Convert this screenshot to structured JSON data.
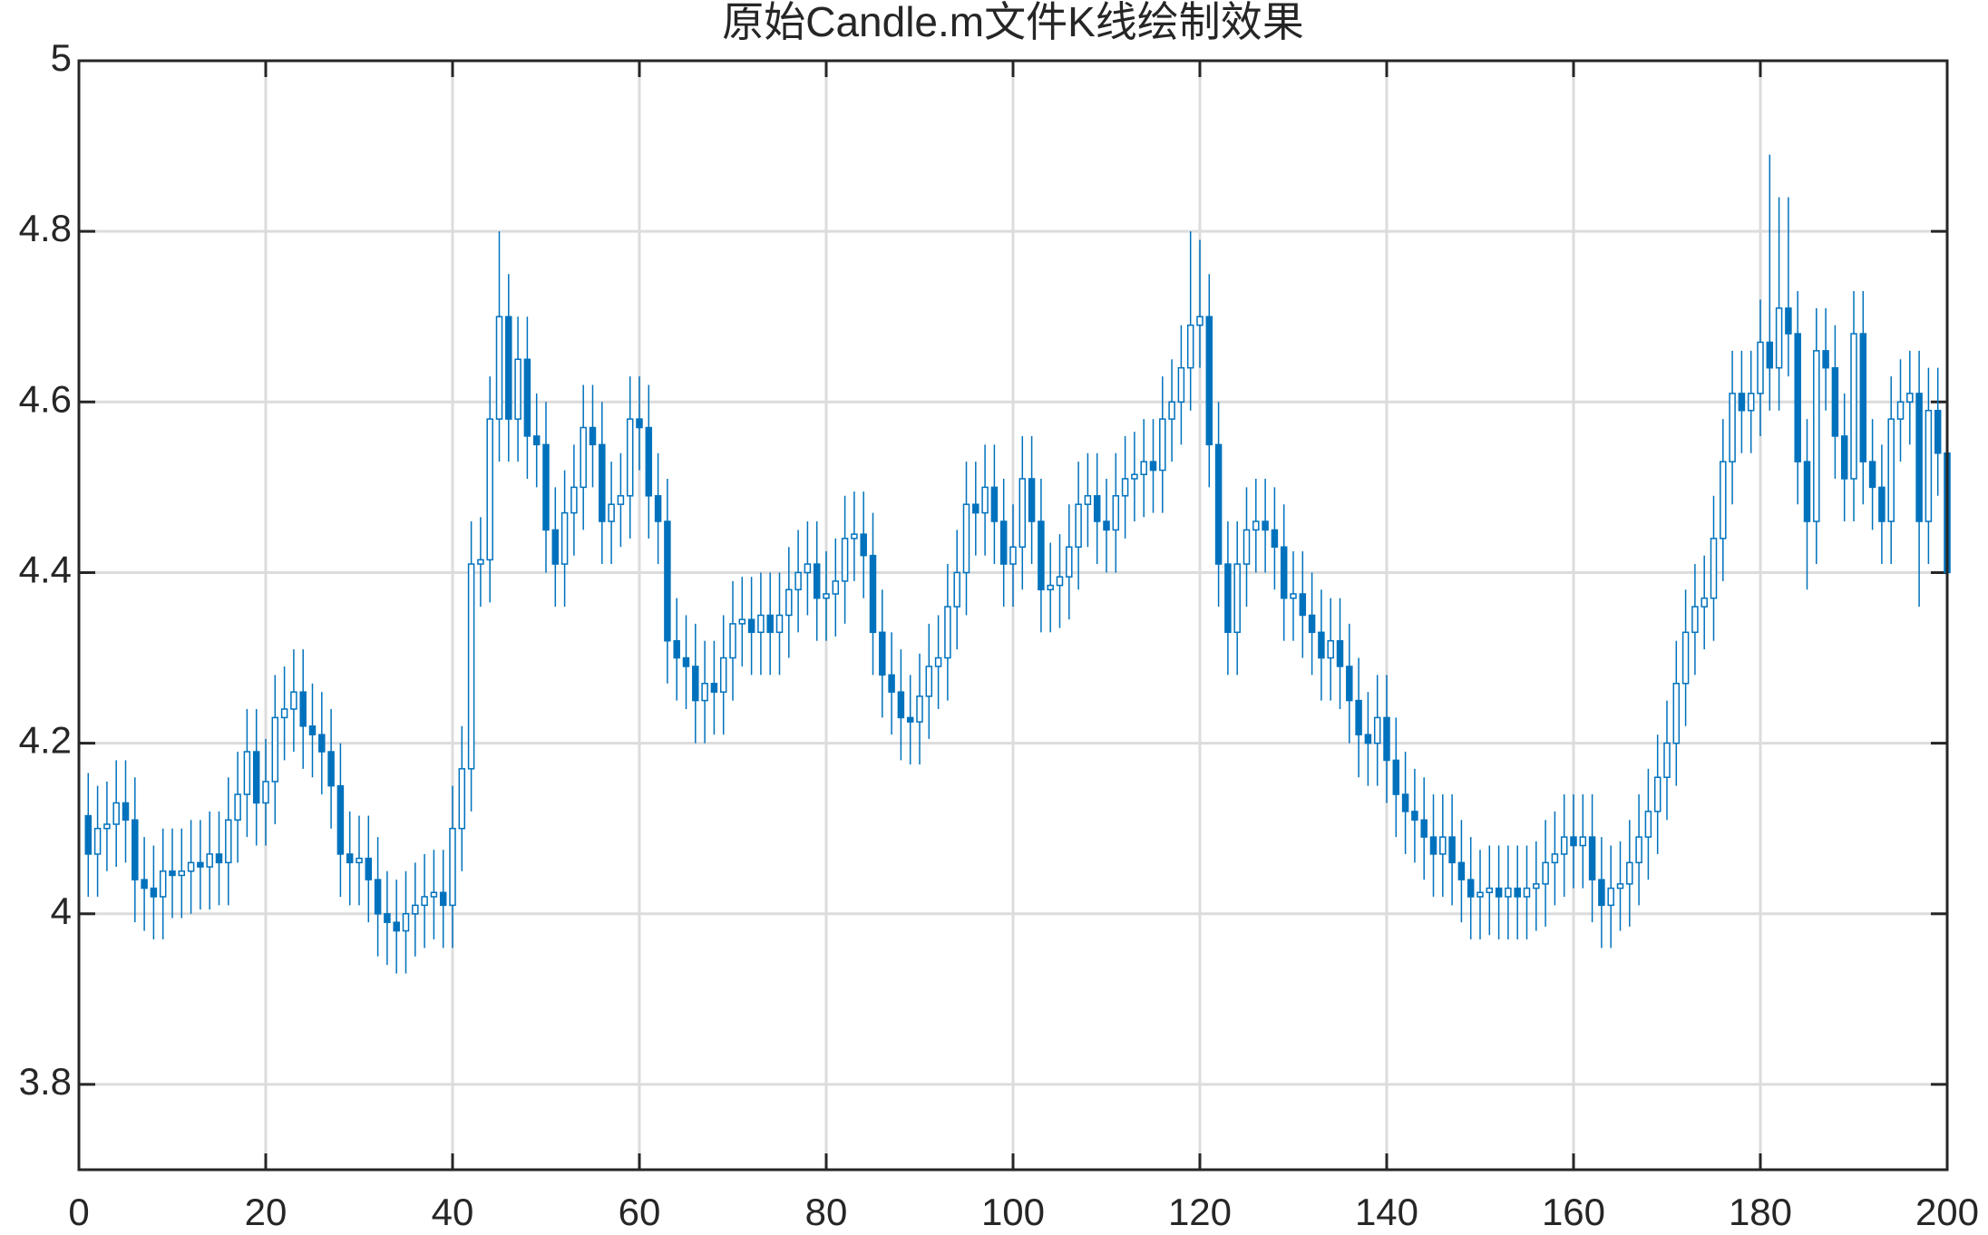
{
  "chart_data": {
    "type": "candlestick",
    "title": "原始Candle.m文件K线绘制效果",
    "color": "#0072bd",
    "grid": true,
    "xlim": [
      0,
      200
    ],
    "ylim": [
      3.7,
      5
    ],
    "xticks": [
      0,
      20,
      40,
      60,
      80,
      100,
      120,
      140,
      160,
      180,
      200
    ],
    "yticks": [
      3.8,
      4,
      4.2,
      4.4,
      4.6,
      4.8,
      5
    ],
    "x": [
      1,
      2,
      3,
      4,
      5,
      6,
      7,
      8,
      9,
      10,
      11,
      12,
      13,
      14,
      15,
      16,
      17,
      18,
      19,
      20,
      21,
      22,
      23,
      24,
      25,
      26,
      27,
      28,
      29,
      30,
      31,
      32,
      33,
      34,
      35,
      36,
      37,
      38,
      39,
      40,
      41,
      42,
      43,
      44,
      45,
      46,
      47,
      48,
      49,
      50,
      51,
      52,
      53,
      54,
      55,
      56,
      57,
      58,
      59,
      60,
      61,
      62,
      63,
      64,
      65,
      66,
      67,
      68,
      69,
      70,
      71,
      72,
      73,
      74,
      75,
      76,
      77,
      78,
      79,
      80,
      81,
      82,
      83,
      84,
      85,
      86,
      87,
      88,
      89,
      90,
      91,
      92,
      93,
      94,
      95,
      96,
      97,
      98,
      99,
      100,
      101,
      102,
      103,
      104,
      105,
      106,
      107,
      108,
      109,
      110,
      111,
      112,
      113,
      114,
      115,
      116,
      117,
      118,
      119,
      120,
      121,
      122,
      123,
      124,
      125,
      126,
      127,
      128,
      129,
      130,
      131,
      132,
      133,
      134,
      135,
      136,
      137,
      138,
      139,
      140,
      141,
      142,
      143,
      144,
      145,
      146,
      147,
      148,
      149,
      150,
      151,
      152,
      153,
      154,
      155,
      156,
      157,
      158,
      159,
      160,
      161,
      162,
      163,
      164,
      165,
      166,
      167,
      168,
      169,
      170,
      171,
      172,
      173,
      174,
      175,
      176,
      177,
      178,
      179,
      180,
      181,
      182,
      183,
      184,
      185,
      186,
      187,
      188,
      189,
      190,
      191,
      192,
      193,
      194,
      195,
      196,
      197,
      198,
      199,
      200
    ],
    "open": [
      4.115,
      4.07,
      4.1,
      4.105,
      4.13,
      4.11,
      4.04,
      4.03,
      4.02,
      4.05,
      4.045,
      4.05,
      4.06,
      4.055,
      4.07,
      4.06,
      4.11,
      4.14,
      4.19,
      4.13,
      4.155,
      4.23,
      4.24,
      4.26,
      4.22,
      4.21,
      4.19,
      4.15,
      4.07,
      4.06,
      4.065,
      4.04,
      4.0,
      3.99,
      3.98,
      4.0,
      4.01,
      4.02,
      4.025,
      4.01,
      4.1,
      4.17,
      4.41,
      4.415,
      4.58,
      4.7,
      4.58,
      4.65,
      4.56,
      4.55,
      4.45,
      4.41,
      4.47,
      4.5,
      4.57,
      4.55,
      4.46,
      4.48,
      4.49,
      4.58,
      4.57,
      4.49,
      4.46,
      4.32,
      4.3,
      4.29,
      4.25,
      4.27,
      4.26,
      4.3,
      4.34,
      4.345,
      4.33,
      4.35,
      4.33,
      4.35,
      4.38,
      4.4,
      4.41,
      4.37,
      4.375,
      4.39,
      4.44,
      4.445,
      4.42,
      4.33,
      4.28,
      4.26,
      4.23,
      4.225,
      4.255,
      4.29,
      4.3,
      4.36,
      4.4,
      4.48,
      4.47,
      4.5,
      4.46,
      4.41,
      4.43,
      4.51,
      4.46,
      4.38,
      4.385,
      4.395,
      4.43,
      4.48,
      4.49,
      4.46,
      4.45,
      4.49,
      4.51,
      4.515,
      4.53,
      4.52,
      4.58,
      4.6,
      4.64,
      4.69,
      4.7,
      4.55,
      4.41,
      4.33,
      4.41,
      4.45,
      4.46,
      4.45,
      4.43,
      4.37,
      4.375,
      4.35,
      4.33,
      4.3,
      4.32,
      4.29,
      4.25,
      4.21,
      4.2,
      4.23,
      4.18,
      4.14,
      4.12,
      4.11,
      4.09,
      4.07,
      4.09,
      4.06,
      4.04,
      4.02,
      4.025,
      4.03,
      4.02,
      4.03,
      4.02,
      4.03,
      4.035,
      4.06,
      4.07,
      4.09,
      4.08,
      4.09,
      4.04,
      4.01,
      4.03,
      4.035,
      4.06,
      4.09,
      4.12,
      4.16,
      4.2,
      4.27,
      4.33,
      4.36,
      4.37,
      4.44,
      4.53,
      4.61,
      4.59,
      4.61,
      4.67,
      4.64,
      4.71,
      4.68,
      4.53,
      4.46,
      4.66,
      4.64,
      4.56,
      4.51,
      4.68,
      4.53,
      4.5,
      4.46,
      4.58,
      4.6,
      4.61,
      4.46,
      4.59,
      4.54
    ],
    "high": [
      4.165,
      4.15,
      4.155,
      4.18,
      4.18,
      4.16,
      4.09,
      4.08,
      4.1,
      4.1,
      4.1,
      4.11,
      4.11,
      4.12,
      4.12,
      4.16,
      4.19,
      4.24,
      4.24,
      4.205,
      4.28,
      4.29,
      4.31,
      4.31,
      4.27,
      4.26,
      4.24,
      4.2,
      4.12,
      4.115,
      4.115,
      4.09,
      4.05,
      4.04,
      4.05,
      4.06,
      4.07,
      4.075,
      4.075,
      4.15,
      4.22,
      4.46,
      4.465,
      4.63,
      4.8,
      4.75,
      4.7,
      4.7,
      4.61,
      4.6,
      4.5,
      4.52,
      4.55,
      4.62,
      4.62,
      4.6,
      4.53,
      4.54,
      4.63,
      4.63,
      4.62,
      4.54,
      4.51,
      4.37,
      4.35,
      4.34,
      4.32,
      4.32,
      4.35,
      4.39,
      4.395,
      4.395,
      4.4,
      4.4,
      4.4,
      4.43,
      4.45,
      4.46,
      4.46,
      4.425,
      4.44,
      4.49,
      4.495,
      4.495,
      4.47,
      4.38,
      4.33,
      4.31,
      4.28,
      4.305,
      4.34,
      4.35,
      4.41,
      4.45,
      4.53,
      4.53,
      4.55,
      4.55,
      4.51,
      4.48,
      4.56,
      4.56,
      4.51,
      4.435,
      4.445,
      4.48,
      4.53,
      4.54,
      4.54,
      4.51,
      4.54,
      4.56,
      4.565,
      4.58,
      4.58,
      4.63,
      4.65,
      4.69,
      4.8,
      4.79,
      4.75,
      4.6,
      4.46,
      4.46,
      4.5,
      4.51,
      4.51,
      4.5,
      4.48,
      4.425,
      4.425,
      4.4,
      4.38,
      4.37,
      4.37,
      4.34,
      4.3,
      4.26,
      4.28,
      4.28,
      4.23,
      4.19,
      4.17,
      4.16,
      4.14,
      4.14,
      4.14,
      4.11,
      4.09,
      4.075,
      4.08,
      4.08,
      4.08,
      4.08,
      4.08,
      4.085,
      4.11,
      4.12,
      4.14,
      4.14,
      4.14,
      4.14,
      4.09,
      4.08,
      4.085,
      4.11,
      4.14,
      4.17,
      4.21,
      4.25,
      4.32,
      4.38,
      4.41,
      4.42,
      4.49,
      4.58,
      4.66,
      4.66,
      4.66,
      4.72,
      4.89,
      4.84,
      4.84,
      4.73,
      4.58,
      4.71,
      4.71,
      4.69,
      4.61,
      4.73,
      4.73,
      4.58,
      4.55,
      4.63,
      4.65,
      4.66,
      4.66,
      4.64,
      4.64,
      4.59
    ],
    "low": [
      4.02,
      4.02,
      4.05,
      4.055,
      4.06,
      3.99,
      3.98,
      3.97,
      3.97,
      3.995,
      3.995,
      4.0,
      4.005,
      4.005,
      4.01,
      4.01,
      4.06,
      4.09,
      4.08,
      4.08,
      4.105,
      4.18,
      4.19,
      4.17,
      4.16,
      4.14,
      4.1,
      4.02,
      4.01,
      4.01,
      3.99,
      3.95,
      3.94,
      3.93,
      3.93,
      3.95,
      3.96,
      3.97,
      3.96,
      3.96,
      4.05,
      4.12,
      4.36,
      4.365,
      4.53,
      4.53,
      4.53,
      4.51,
      4.5,
      4.4,
      4.36,
      4.36,
      4.42,
      4.45,
      4.5,
      4.41,
      4.41,
      4.43,
      4.44,
      4.52,
      4.44,
      4.41,
      4.27,
      4.25,
      4.24,
      4.2,
      4.2,
      4.21,
      4.21,
      4.25,
      4.29,
      4.28,
      4.28,
      4.28,
      4.28,
      4.3,
      4.33,
      4.35,
      4.32,
      4.32,
      4.325,
      4.34,
      4.39,
      4.37,
      4.28,
      4.23,
      4.21,
      4.18,
      4.175,
      4.175,
      4.205,
      4.24,
      4.25,
      4.31,
      4.35,
      4.42,
      4.42,
      4.41,
      4.36,
      4.36,
      4.38,
      4.41,
      4.33,
      4.33,
      4.335,
      4.345,
      4.38,
      4.43,
      4.41,
      4.4,
      4.4,
      4.44,
      4.46,
      4.465,
      4.47,
      4.47,
      4.53,
      4.55,
      4.59,
      4.64,
      4.5,
      4.36,
      4.28,
      4.28,
      4.36,
      4.4,
      4.4,
      4.38,
      4.32,
      4.32,
      4.3,
      4.28,
      4.25,
      4.25,
      4.24,
      4.2,
      4.16,
      4.15,
      4.15,
      4.13,
      4.09,
      4.07,
      4.06,
      4.04,
      4.02,
      4.02,
      4.01,
      3.99,
      3.97,
      3.97,
      3.975,
      3.97,
      3.97,
      3.97,
      3.97,
      3.98,
      3.985,
      4.01,
      4.02,
      4.03,
      4.03,
      3.99,
      3.96,
      3.96,
      3.98,
      3.985,
      4.01,
      4.04,
      4.07,
      4.11,
      4.15,
      4.22,
      4.28,
      4.31,
      4.32,
      4.39,
      4.48,
      4.54,
      4.54,
      4.56,
      4.59,
      4.59,
      4.63,
      4.48,
      4.38,
      4.41,
      4.59,
      4.51,
      4.46,
      4.46,
      4.48,
      4.45,
      4.41,
      4.41,
      4.53,
      4.55,
      4.36,
      4.41,
      4.49,
      4.3
    ],
    "close": [
      4.07,
      4.1,
      4.105,
      4.13,
      4.11,
      4.04,
      4.03,
      4.02,
      4.05,
      4.045,
      4.05,
      4.06,
      4.055,
      4.07,
      4.06,
      4.11,
      4.14,
      4.19,
      4.13,
      4.155,
      4.23,
      4.24,
      4.26,
      4.22,
      4.21,
      4.19,
      4.15,
      4.07,
      4.06,
      4.065,
      4.04,
      4.0,
      3.99,
      3.98,
      4.0,
      4.01,
      4.02,
      4.025,
      4.01,
      4.1,
      4.17,
      4.41,
      4.415,
      4.58,
      4.7,
      4.58,
      4.65,
      4.56,
      4.55,
      4.45,
      4.41,
      4.47,
      4.5,
      4.57,
      4.55,
      4.46,
      4.48,
      4.49,
      4.58,
      4.57,
      4.49,
      4.46,
      4.32,
      4.3,
      4.29,
      4.25,
      4.27,
      4.26,
      4.3,
      4.34,
      4.345,
      4.33,
      4.35,
      4.33,
      4.35,
      4.38,
      4.4,
      4.41,
      4.37,
      4.375,
      4.39,
      4.44,
      4.445,
      4.42,
      4.33,
      4.28,
      4.26,
      4.23,
      4.225,
      4.255,
      4.29,
      4.3,
      4.36,
      4.4,
      4.48,
      4.47,
      4.5,
      4.46,
      4.41,
      4.43,
      4.51,
      4.46,
      4.38,
      4.385,
      4.395,
      4.43,
      4.48,
      4.49,
      4.46,
      4.45,
      4.49,
      4.51,
      4.515,
      4.53,
      4.52,
      4.58,
      4.6,
      4.64,
      4.69,
      4.7,
      4.55,
      4.41,
      4.33,
      4.41,
      4.45,
      4.46,
      4.45,
      4.43,
      4.37,
      4.375,
      4.35,
      4.33,
      4.3,
      4.32,
      4.29,
      4.25,
      4.21,
      4.2,
      4.23,
      4.18,
      4.14,
      4.12,
      4.11,
      4.09,
      4.07,
      4.09,
      4.06,
      4.04,
      4.02,
      4.025,
      4.03,
      4.02,
      4.03,
      4.02,
      4.03,
      4.035,
      4.06,
      4.07,
      4.09,
      4.08,
      4.09,
      4.04,
      4.01,
      4.03,
      4.035,
      4.06,
      4.09,
      4.12,
      4.16,
      4.2,
      4.27,
      4.33,
      4.36,
      4.37,
      4.44,
      4.53,
      4.61,
      4.59,
      4.61,
      4.67,
      4.64,
      4.71,
      4.68,
      4.53,
      4.46,
      4.66,
      4.64,
      4.56,
      4.51,
      4.68,
      4.53,
      4.5,
      4.46,
      4.58,
      4.6,
      4.61,
      4.46,
      4.59,
      4.54,
      4.4
    ]
  }
}
